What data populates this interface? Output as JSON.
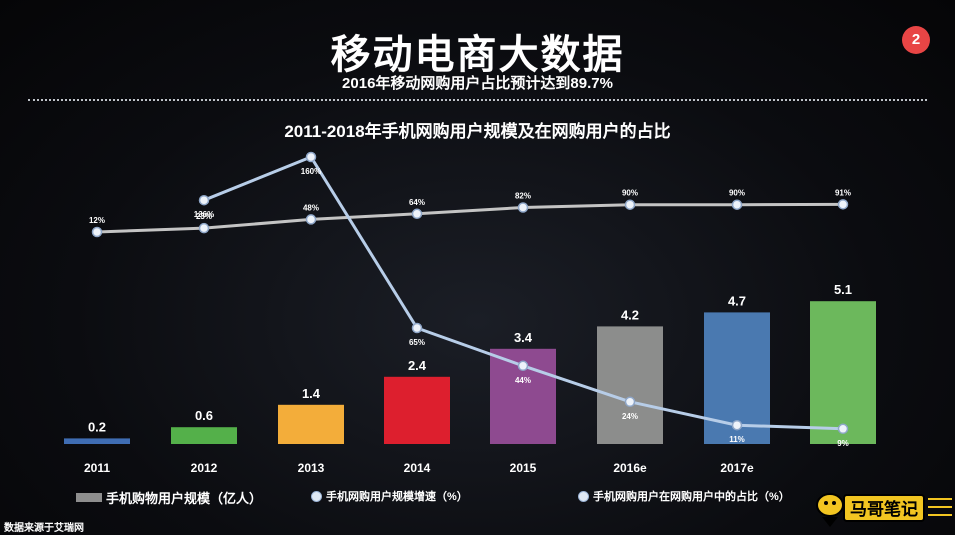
{
  "slide": {
    "title": "移动电商大数据",
    "subtitle": "2016年移动网购用户占比预计达到89.7%",
    "page_number": "2",
    "source": "数据来源于艾瑞网"
  },
  "chart_data": {
    "type": "bar+line",
    "title": "2011-2018年手机网购用户规模及在网购用户的占比",
    "categories": [
      "2011",
      "2012",
      "2013",
      "2014",
      "2015",
      "2016e",
      "2017e",
      ""
    ],
    "bars": {
      "name": "手机购物用户规模（亿人）",
      "values": [
        0.2,
        0.6,
        1.4,
        2.4,
        3.4,
        4.2,
        4.7,
        5.1
      ],
      "labels": [
        "0.2",
        "0.6",
        "1.4",
        "2.4",
        "3.4",
        "4.2",
        "4.7",
        "5.1"
      ],
      "colors": [
        "#3f6db3",
        "#54b04a",
        "#f3ad3a",
        "#dd1f2e",
        "#8e4a90",
        "#8c8d8c",
        "#4a79b0",
        "#6cb85c"
      ]
    },
    "lines": [
      {
        "name": "手机网购用户规模增速（%）",
        "values": [
          null,
          136,
          160,
          65,
          44,
          24,
          11,
          9
        ],
        "labels": [
          "",
          "136%",
          "160%",
          "65%",
          "44%",
          "24%",
          "11%",
          "9%"
        ],
        "color": "#b7cde8"
      },
      {
        "name": "手机网购用户在网购用户中的占比（%）",
        "values": [
          12,
          23,
          48,
          64,
          82,
          90,
          90,
          91
        ],
        "labels": [
          "12%",
          "23%",
          "48%",
          "64%",
          "82%",
          "90%",
          "90%",
          "91%"
        ],
        "color": "#c4c4c4"
      }
    ]
  },
  "legend": {
    "bars": "手机购物用户规模（亿人）",
    "growth": "手机网购用户规模增速（%）",
    "share": "手机网购用户在网购用户中的占比（%）"
  },
  "logo": {
    "text": "马哥笔记"
  }
}
